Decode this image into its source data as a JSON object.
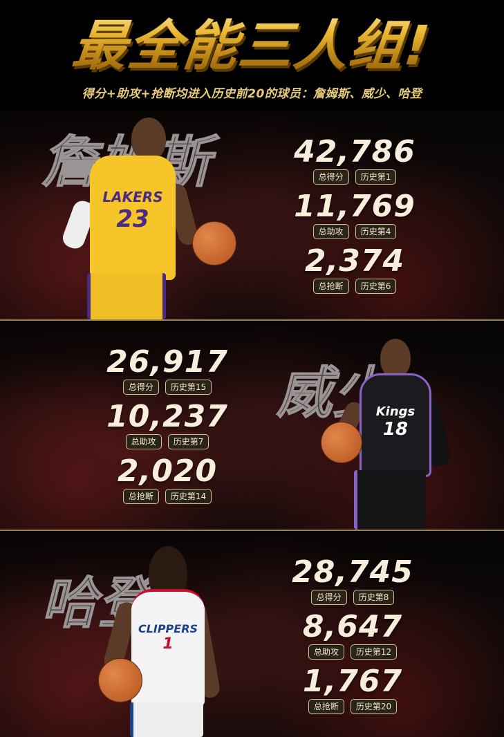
{
  "header": {
    "title": "最全能三人组!",
    "subtitle": "得分+助攻+抢断均进入历史前20的球员：詹姆斯、威少、哈登"
  },
  "players": [
    {
      "name": "詹姆斯",
      "jersey_team": "LAKERS",
      "jersey_number": "23",
      "jersey_color": "#f5c52a",
      "stats": [
        {
          "value": "42,786",
          "label": "总得分",
          "rank": "历史第1"
        },
        {
          "value": "11,769",
          "label": "总助攻",
          "rank": "历史第4"
        },
        {
          "value": "2,374",
          "label": "总抢断",
          "rank": "历史第6"
        }
      ]
    },
    {
      "name": "威少",
      "jersey_team": "Kings",
      "jersey_number": "18",
      "jersey_color": "#1b1b1f",
      "stats": [
        {
          "value": "26,917",
          "label": "总得分",
          "rank": "历史第15"
        },
        {
          "value": "10,237",
          "label": "总助攻",
          "rank": "历史第7"
        },
        {
          "value": "2,020",
          "label": "总抢断",
          "rank": "历史第14"
        }
      ]
    },
    {
      "name": "哈登",
      "jersey_team": "CLIPPERS",
      "jersey_number": "1",
      "jersey_color": "#f4f4f6",
      "stats": [
        {
          "value": "28,745",
          "label": "总得分",
          "rank": "历史第8"
        },
        {
          "value": "8,647",
          "label": "总助攻",
          "rank": "历史第12"
        },
        {
          "value": "1,767",
          "label": "总抢断",
          "rank": "历史第20"
        }
      ]
    }
  ],
  "colors": {
    "gold": "#e9b530",
    "cream": "#f8eedb",
    "badge_border": "#d8c290"
  }
}
